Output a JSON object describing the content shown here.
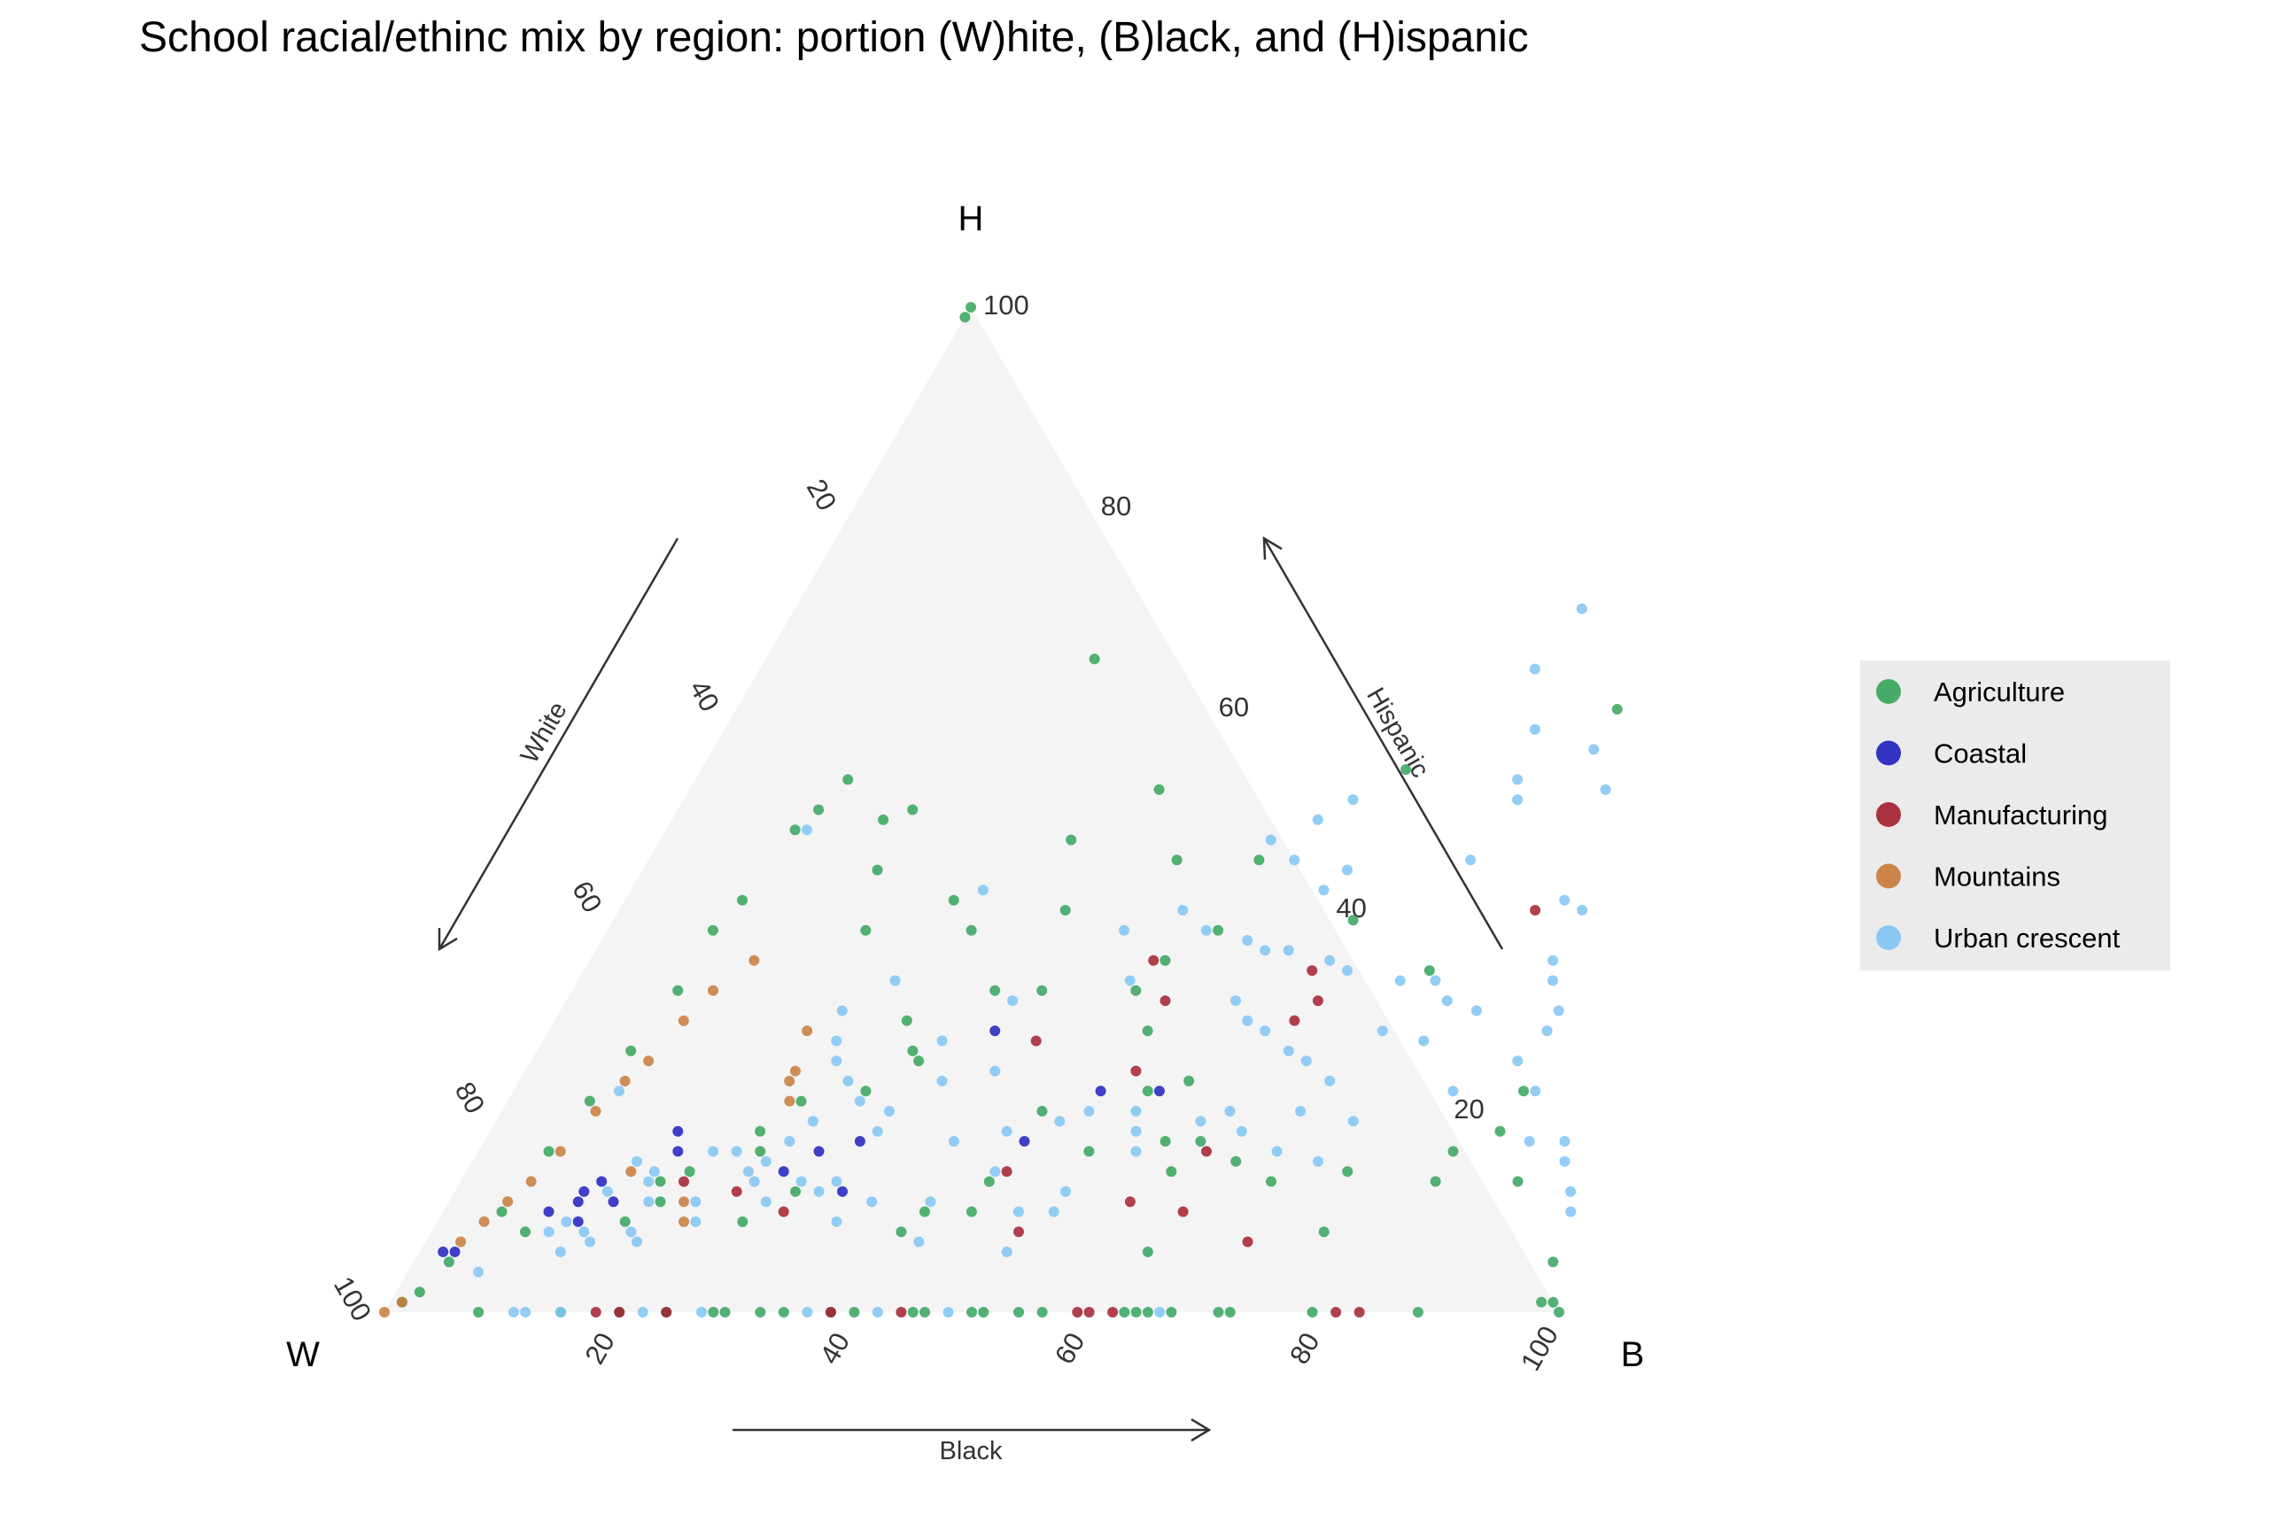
{
  "chart_data": {
    "type": "scatter",
    "subtype": "ternary",
    "title": "School racial/ethinc mix by region: portion (W)hite, (B)lack, and (H)ispanic",
    "vertex_labels": {
      "white": "W",
      "black": "B",
      "hispanic": "H"
    },
    "axis_titles": {
      "white": "White",
      "black": "Black",
      "hispanic": "Hispanic"
    },
    "ticks": {
      "white": [
        "20",
        "40",
        "60",
        "80",
        "100"
      ],
      "black": [
        "20",
        "40",
        "60",
        "80",
        "100"
      ],
      "hispanic": [
        "20",
        "40",
        "60",
        "80",
        "100"
      ]
    },
    "grid": false,
    "legend_position": "right",
    "series": [
      {
        "name": "Agriculture",
        "color": "#35A35A",
        "points": [
          [
            0,
            100
          ],
          [
            0,
            99
          ],
          [
            40,
            52
          ],
          [
            35,
            47
          ],
          [
            60,
            54
          ],
          [
            45,
            13
          ],
          [
            57,
            23
          ],
          [
            75,
            60
          ],
          [
            20,
            50
          ],
          [
            30,
            29
          ],
          [
            28,
            65
          ],
          [
            48,
            32
          ],
          [
            52,
            45
          ],
          [
            36,
            32
          ],
          [
            32,
            26
          ],
          [
            31,
            38
          ],
          [
            45,
            45
          ],
          [
            28,
            41
          ],
          [
            38,
            40
          ],
          [
            65,
            15
          ],
          [
            40,
            32
          ],
          [
            72,
            34
          ],
          [
            63,
            39
          ],
          [
            33,
            25
          ],
          [
            51,
            28
          ],
          [
            25,
            21
          ],
          [
            19,
            14
          ],
          [
            45,
            10
          ],
          [
            60,
            14
          ],
          [
            62,
            6
          ],
          [
            17,
            13
          ],
          [
            16,
            9
          ],
          [
            40,
            8
          ],
          [
            41,
            10
          ],
          [
            52,
            16
          ],
          [
            58,
            17
          ],
          [
            76,
            8
          ],
          [
            75,
            14
          ],
          [
            83,
            16
          ],
          [
            90,
            13
          ],
          [
            86,
            22
          ],
          [
            97,
            5
          ],
          [
            99,
            1
          ],
          [
            100,
            0
          ],
          [
            98,
            1
          ],
          [
            83,
            13
          ],
          [
            86,
            18
          ],
          [
            8,
            0
          ],
          [
            15,
            0
          ],
          [
            20,
            0
          ],
          [
            24,
            0
          ],
          [
            28,
            0
          ],
          [
            29,
            0
          ],
          [
            32,
            0
          ],
          [
            34,
            0
          ],
          [
            38,
            0
          ],
          [
            40,
            0
          ],
          [
            45,
            0
          ],
          [
            46,
            0
          ],
          [
            50,
            0
          ],
          [
            51,
            0
          ],
          [
            54,
            0
          ],
          [
            56,
            0
          ],
          [
            63,
            0
          ],
          [
            64,
            0
          ],
          [
            65,
            0
          ],
          [
            67,
            0
          ],
          [
            71,
            0
          ],
          [
            72,
            0
          ],
          [
            79,
            0
          ],
          [
            88,
            0
          ],
          [
            1,
            1
          ],
          [
            2,
            2
          ],
          [
            3,
            5
          ],
          [
            5,
            10
          ],
          [
            6,
            16
          ],
          [
            7,
            21
          ],
          [
            8,
            26
          ],
          [
            9,
            32
          ],
          [
            9,
            38
          ],
          [
            10,
            41
          ],
          [
            11,
            48
          ],
          [
            12,
            50
          ],
          [
            13,
            53
          ],
          [
            18,
            49
          ],
          [
            22,
            38
          ],
          [
            20,
            44
          ],
          [
            8,
            8
          ],
          [
            18,
            11
          ],
          [
            24,
            16
          ],
          [
            26,
            9
          ],
          [
            29,
            12
          ],
          [
            49,
            35
          ],
          [
            52,
            38
          ],
          [
            61,
            17
          ],
          [
            69,
            13
          ],
          [
            46,
            20
          ],
          [
            54,
            22
          ],
          [
            23,
            18
          ],
          [
            30,
            22
          ]
        ]
      },
      {
        "name": "Coastal",
        "color": "#1E1EBF",
        "points": [
          [
            3,
            6
          ],
          [
            9,
            10
          ],
          [
            11,
            12
          ],
          [
            14,
            11
          ],
          [
            12,
            13
          ],
          [
            12,
            9
          ],
          [
            17,
            16
          ],
          [
            16,
            18
          ],
          [
            27,
            14
          ],
          [
            29,
            16
          ],
          [
            32,
            17
          ],
          [
            33,
            12
          ],
          [
            38,
            28
          ],
          [
            46,
            17
          ],
          [
            50,
            22
          ],
          [
            55,
            22
          ],
          [
            2,
            6
          ],
          [
            11,
            11
          ]
        ]
      },
      {
        "name": "Manufacturing",
        "color": "#A31E2E",
        "points": [
          [
            18,
            0
          ],
          [
            20,
            0
          ],
          [
            24,
            0
          ],
          [
            38,
            0
          ],
          [
            44,
            0
          ],
          [
            59,
            0
          ],
          [
            60,
            0
          ],
          [
            62,
            0
          ],
          [
            81,
            0
          ],
          [
            83,
            0
          ],
          [
            24,
            12
          ],
          [
            29,
            10
          ],
          [
            42,
            27
          ],
          [
            48,
            35
          ],
          [
            52,
            24
          ],
          [
            46,
            14
          ],
          [
            58,
            11
          ],
          [
            63,
            10
          ],
          [
            63,
            29
          ],
          [
            64,
            31
          ],
          [
            62,
            16
          ],
          [
            50,
            8
          ],
          [
            62,
            34
          ],
          [
            78,
            40
          ],
          [
            70,
            7
          ],
          [
            51,
            31
          ],
          [
            19,
            13
          ]
        ]
      },
      {
        "name": "Mountains",
        "color": "#C87A3A",
        "points": [
          [
            3,
            7
          ],
          [
            4,
            9
          ],
          [
            5,
            11
          ],
          [
            6,
            13
          ],
          [
            7,
            16
          ],
          [
            8,
            20
          ],
          [
            9,
            23
          ],
          [
            10,
            25
          ],
          [
            11,
            29
          ],
          [
            12,
            32
          ],
          [
            14,
            35
          ],
          [
            22,
            28
          ],
          [
            23,
            23
          ],
          [
            24,
            21
          ],
          [
            23,
            24
          ],
          [
            20,
            11
          ],
          [
            21,
            9
          ],
          [
            14,
            14
          ],
          [
            0,
            0
          ],
          [
            1,
            1
          ]
        ]
      },
      {
        "name": "Urban crescent",
        "color": "#7FC4F5",
        "points": [
          [
            67,
            70
          ],
          [
            66,
            64
          ],
          [
            69,
            58
          ],
          [
            75,
            56
          ],
          [
            70,
            53
          ],
          [
            71,
            51
          ],
          [
            78,
            52
          ],
          [
            70,
            45
          ],
          [
            80,
            41
          ],
          [
            82,
            40
          ],
          [
            82,
            35
          ],
          [
            83,
            33
          ],
          [
            85,
            30
          ],
          [
            85,
            28
          ],
          [
            84,
            25
          ],
          [
            87,
            22
          ],
          [
            89,
            17
          ],
          [
            92,
            17
          ],
          [
            93,
            15
          ],
          [
            95,
            12
          ],
          [
            96,
            10
          ],
          [
            57,
            51
          ],
          [
            55,
            49
          ],
          [
            52,
            47
          ],
          [
            55,
            45
          ],
          [
            60,
            44
          ],
          [
            59,
            42
          ],
          [
            48,
            40
          ],
          [
            51,
            38
          ],
          [
            55,
            37
          ],
          [
            57,
            36
          ],
          [
            59,
            36
          ],
          [
            63,
            35
          ],
          [
            65,
            34
          ],
          [
            70,
            33
          ],
          [
            73,
            33
          ],
          [
            75,
            31
          ],
          [
            71,
            28
          ],
          [
            75,
            27
          ],
          [
            78,
            30
          ],
          [
            57,
            31
          ],
          [
            59,
            29
          ],
          [
            61,
            28
          ],
          [
            64,
            26
          ],
          [
            66,
            25
          ],
          [
            69,
            23
          ],
          [
            60,
            19
          ],
          [
            62,
            20
          ],
          [
            68,
            20
          ],
          [
            73,
            19
          ],
          [
            80,
            22
          ],
          [
            44,
            38
          ],
          [
            47,
            33
          ],
          [
            38,
            31
          ],
          [
            34,
            27
          ],
          [
            40,
            24
          ],
          [
            36,
            23
          ],
          [
            33,
            20
          ],
          [
            33,
            18
          ],
          [
            40,
            17
          ],
          [
            44,
            18
          ],
          [
            48,
            19
          ],
          [
            50,
            20
          ],
          [
            54,
            20
          ],
          [
            55,
            18
          ],
          [
            56,
            16
          ],
          [
            27,
            33
          ],
          [
            24,
            30
          ],
          [
            25,
            27
          ],
          [
            26,
            25
          ],
          [
            28,
            23
          ],
          [
            30,
            21
          ],
          [
            27,
            19
          ],
          [
            26,
            17
          ],
          [
            22,
            16
          ],
          [
            20,
            16
          ],
          [
            24,
            14
          ],
          [
            25,
            13
          ],
          [
            31,
            12
          ],
          [
            36,
            11
          ],
          [
            41,
            11
          ],
          [
            49,
            10
          ],
          [
            52,
            12
          ],
          [
            50,
            6
          ],
          [
            42,
            7
          ],
          [
            34,
            9
          ],
          [
            32,
            13
          ],
          [
            29,
            13
          ],
          [
            27,
            11
          ],
          [
            21,
            11
          ],
          [
            22,
            9
          ],
          [
            16,
            13
          ],
          [
            14,
            15
          ],
          [
            16,
            14
          ],
          [
            17,
            11
          ],
          [
            10,
            8
          ],
          [
            11,
            9
          ],
          [
            13,
            8
          ],
          [
            14,
            7
          ],
          [
            17,
            8
          ],
          [
            18,
            7
          ],
          [
            13,
            12
          ],
          [
            12,
            6
          ],
          [
            6,
            4
          ],
          [
            11,
            0
          ],
          [
            12,
            0
          ],
          [
            15,
            0
          ],
          [
            22,
            0
          ],
          [
            27,
            0
          ],
          [
            36,
            0
          ],
          [
            42,
            0
          ],
          [
            48,
            0
          ],
          [
            66,
            0
          ],
          [
            12,
            48
          ],
          [
            9,
            22
          ],
          [
            30,
            42
          ],
          [
            25,
            15
          ],
          [
            45,
            14
          ],
          [
            52,
            10
          ],
          [
            64,
            18
          ],
          [
            68,
            16
          ],
          [
            72,
            15
          ]
        ]
      }
    ]
  }
}
